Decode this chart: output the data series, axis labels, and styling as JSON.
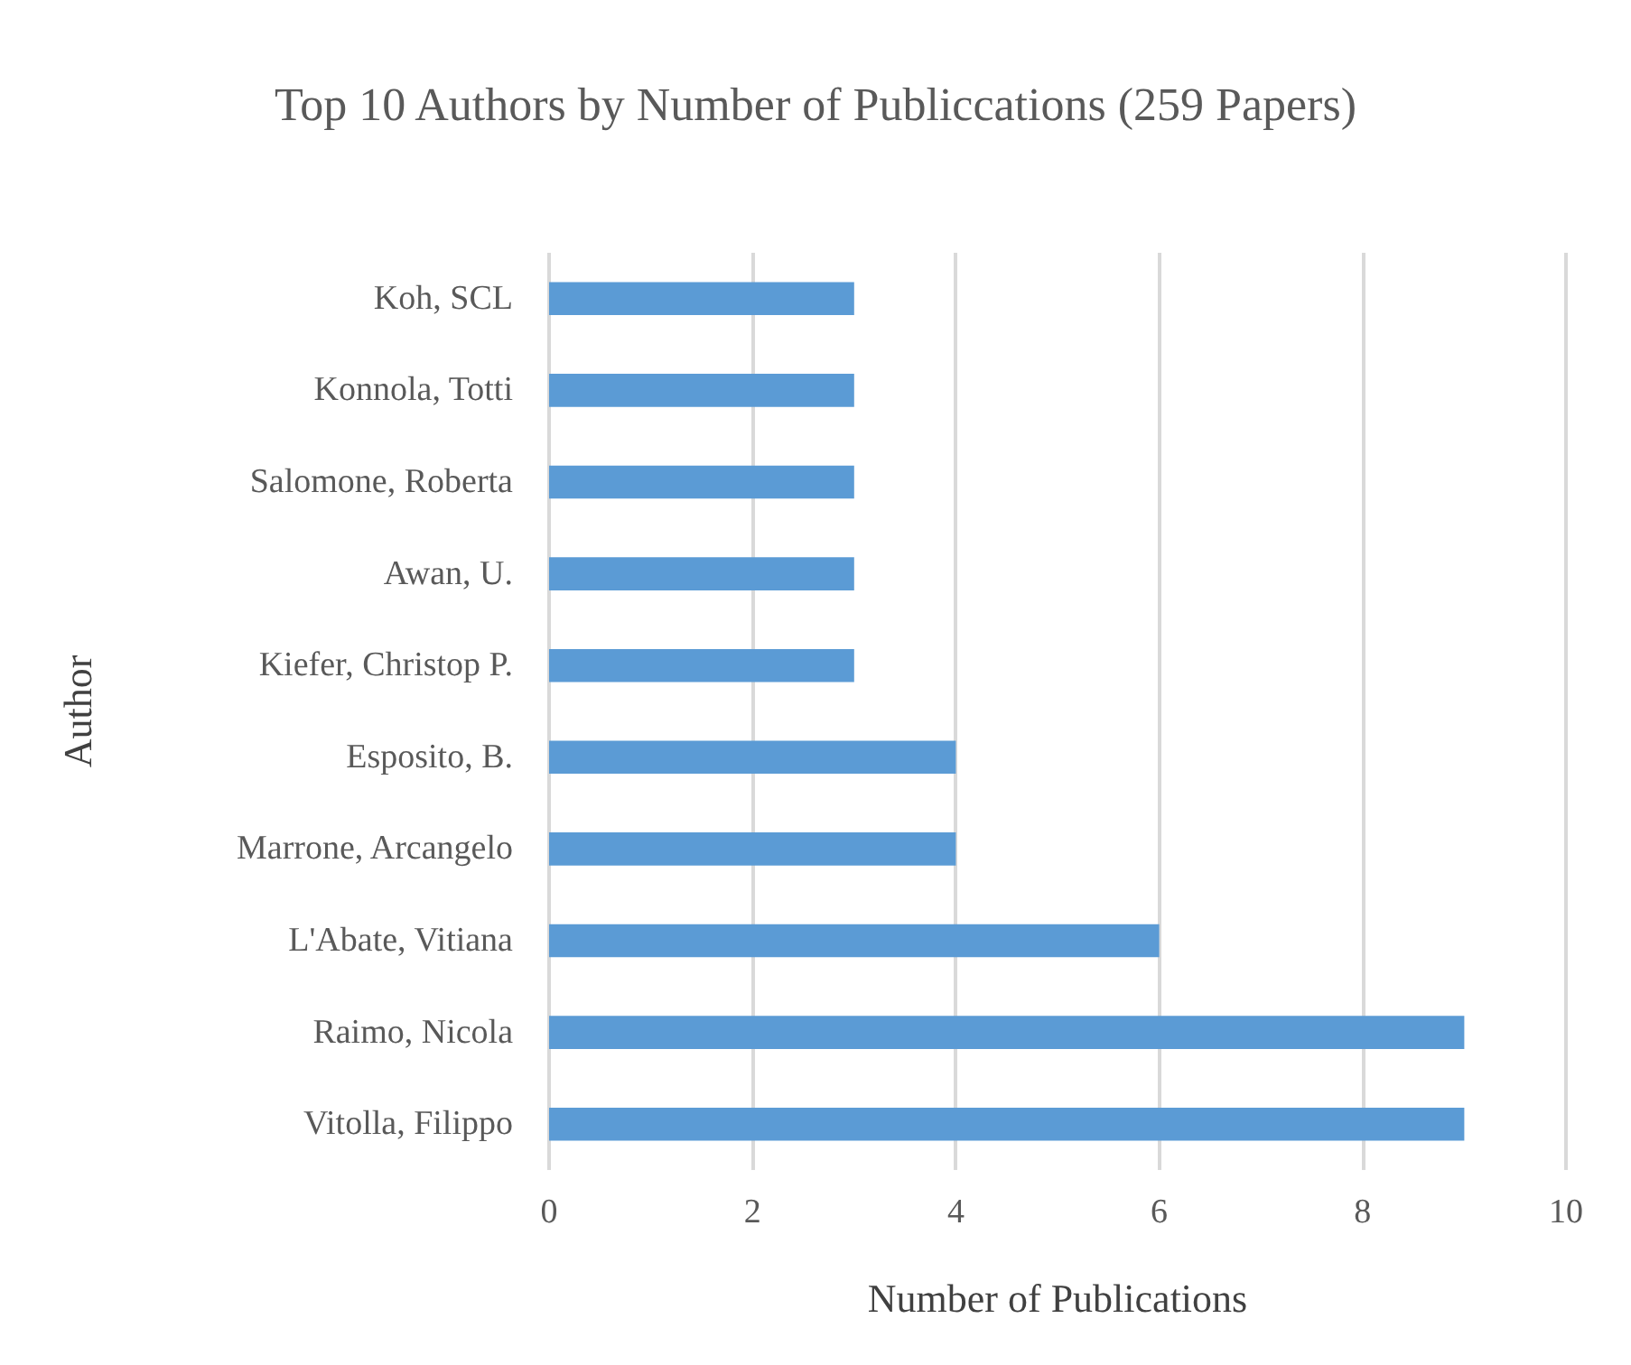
{
  "chart_data": {
    "type": "bar",
    "orientation": "horizontal",
    "title": "Top 10 Authors by Number of Publiccations (259 Papers)",
    "xlabel": "Number of Publications",
    "ylabel": "Author",
    "categories": [
      "Koh, SCL",
      "Konnola, Totti",
      "Salomone, Roberta",
      "Awan, U.",
      "Kiefer, Christop P.",
      "Esposito, B.",
      "Marrone, Arcangelo",
      "L'Abate, Vitiana",
      "Raimo, Nicola",
      "Vitolla, Filippo"
    ],
    "values": [
      3,
      3,
      3,
      3,
      3,
      4,
      4,
      6,
      9,
      9
    ],
    "color": "#5b9bd5",
    "xlim": [
      0,
      10
    ],
    "xticks": [
      0,
      2,
      4,
      6,
      8,
      10
    ],
    "grid": "x"
  }
}
